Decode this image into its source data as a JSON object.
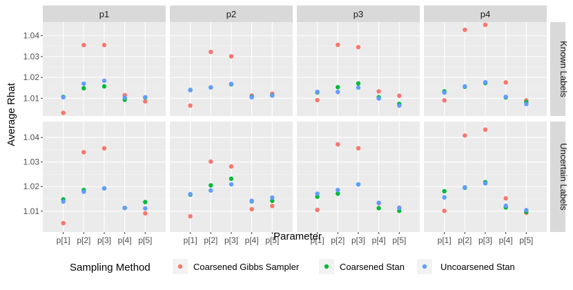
{
  "chart_data": {
    "type": "scatter",
    "facet_columns": [
      "p1",
      "p2",
      "p3",
      "p4"
    ],
    "facet_rows": [
      "Known Labels",
      "Uncertain Labels"
    ],
    "categories": [
      "p[1]",
      "p[2]",
      "p[3]",
      "p[4]",
      "p[5]"
    ],
    "xlabel": "Parameter",
    "ylabel": "Average Rhat",
    "ylim": [
      1.0015,
      1.0465
    ],
    "yticks": [
      1.01,
      1.02,
      1.03,
      1.04
    ],
    "ytick_labels": [
      "1.01",
      "1.02",
      "1.03",
      "1.04"
    ],
    "grid": true,
    "legend": {
      "title": "Sampling Method",
      "position": "bottom",
      "entries": [
        "Coarsened Gibbs Sampler",
        "Coarsened Stan",
        "Uncoarsened Stan"
      ]
    },
    "colors": {
      "Coarsened Gibbs Sampler": "#f8766d",
      "Coarsened Stan": "#00ba38",
      "Uncoarsened Stan": "#619cff"
    },
    "panels": [
      {
        "row": "Known Labels",
        "col": "p1",
        "series": [
          {
            "name": "Coarsened Gibbs Sampler",
            "values": [
              1.003,
              1.0355,
              1.0355,
              1.0115,
              1.0085
            ]
          },
          {
            "name": "Coarsened Stan",
            "values": [
              1.0107,
              1.0148,
              1.0157,
              1.0093,
              1.0103
            ]
          },
          {
            "name": "Uncoarsened Stan",
            "values": [
              1.0105,
              1.017,
              1.0184,
              1.0103,
              1.0105
            ]
          }
        ]
      },
      {
        "row": "Known Labels",
        "col": "p2",
        "series": [
          {
            "name": "Coarsened Gibbs Sampler",
            "values": [
              1.0065,
              1.0322,
              1.0301,
              1.0113,
              1.0122
            ]
          },
          {
            "name": "Coarsened Stan",
            "values": [
              1.014,
              1.0152,
              1.0167,
              1.0107,
              1.0114
            ]
          },
          {
            "name": "Uncoarsened Stan",
            "values": [
              1.0139,
              1.0152,
              1.0169,
              1.0105,
              1.0113
            ]
          }
        ]
      },
      {
        "row": "Known Labels",
        "col": "p3",
        "series": [
          {
            "name": "Coarsened Gibbs Sampler",
            "values": [
              1.0091,
              1.0356,
              1.0345,
              1.0133,
              1.0112
            ]
          },
          {
            "name": "Coarsened Stan",
            "values": [
              1.0128,
              1.0153,
              1.0171,
              1.0105,
              1.0073
            ]
          },
          {
            "name": "Uncoarsened Stan",
            "values": [
              1.0131,
              1.013,
              1.0151,
              1.0099,
              1.0065
            ]
          }
        ]
      },
      {
        "row": "Known Labels",
        "col": "p4",
        "series": [
          {
            "name": "Coarsened Gibbs Sampler",
            "values": [
              1.009,
              1.0428,
              1.0452,
              1.0176,
              1.009
            ]
          },
          {
            "name": "Coarsened Stan",
            "values": [
              1.0133,
              1.0155,
              1.0173,
              1.0104,
              1.0081
            ]
          },
          {
            "name": "Uncoarsened Stan",
            "values": [
              1.0127,
              1.0157,
              1.0177,
              1.0107,
              1.0072
            ]
          }
        ]
      },
      {
        "row": "Uncertain Labels",
        "col": "p1",
        "series": [
          {
            "name": "Coarsened Gibbs Sampler",
            "values": [
              1.0051,
              1.034,
              1.0356,
              1.0113,
              1.0091
            ]
          },
          {
            "name": "Coarsened Stan",
            "values": [
              1.0148,
              1.0186,
              1.0193,
              1.0113,
              1.0137
            ]
          },
          {
            "name": "Uncoarsened Stan",
            "values": [
              1.0139,
              1.0179,
              1.0193,
              1.0113,
              1.0111
            ]
          }
        ]
      },
      {
        "row": "Uncertain Labels",
        "col": "p2",
        "series": [
          {
            "name": "Coarsened Gibbs Sampler",
            "values": [
              1.0079,
              1.0302,
              1.0282,
              1.0108,
              1.0121
            ]
          },
          {
            "name": "Coarsened Stan",
            "values": [
              1.0167,
              1.0205,
              1.0232,
              1.014,
              1.0142
            ]
          },
          {
            "name": "Uncoarsened Stan",
            "values": [
              1.0169,
              1.0184,
              1.0209,
              1.0142,
              1.0155
            ]
          }
        ]
      },
      {
        "row": "Uncertain Labels",
        "col": "p3",
        "series": [
          {
            "name": "Coarsened Gibbs Sampler",
            "values": [
              1.0105,
              1.0372,
              1.0356,
              1.0132,
              1.0114
            ]
          },
          {
            "name": "Coarsened Stan",
            "values": [
              1.0159,
              1.0171,
              1.0209,
              1.0112,
              1.0101
            ]
          },
          {
            "name": "Uncoarsened Stan",
            "values": [
              1.0171,
              1.0186,
              1.0209,
              1.0134,
              1.0113
            ]
          }
        ]
      },
      {
        "row": "Uncertain Labels",
        "col": "p4",
        "series": [
          {
            "name": "Coarsened Gibbs Sampler",
            "values": [
              1.0101,
              1.0408,
              1.0432,
              1.0152,
              1.0093
            ]
          },
          {
            "name": "Coarsened Stan",
            "values": [
              1.0181,
              1.0195,
              1.0218,
              1.0115,
              1.0097
            ]
          },
          {
            "name": "Uncoarsened Stan",
            "values": [
              1.0156,
              1.0197,
              1.0213,
              1.0122,
              1.0104
            ]
          }
        ]
      }
    ]
  }
}
